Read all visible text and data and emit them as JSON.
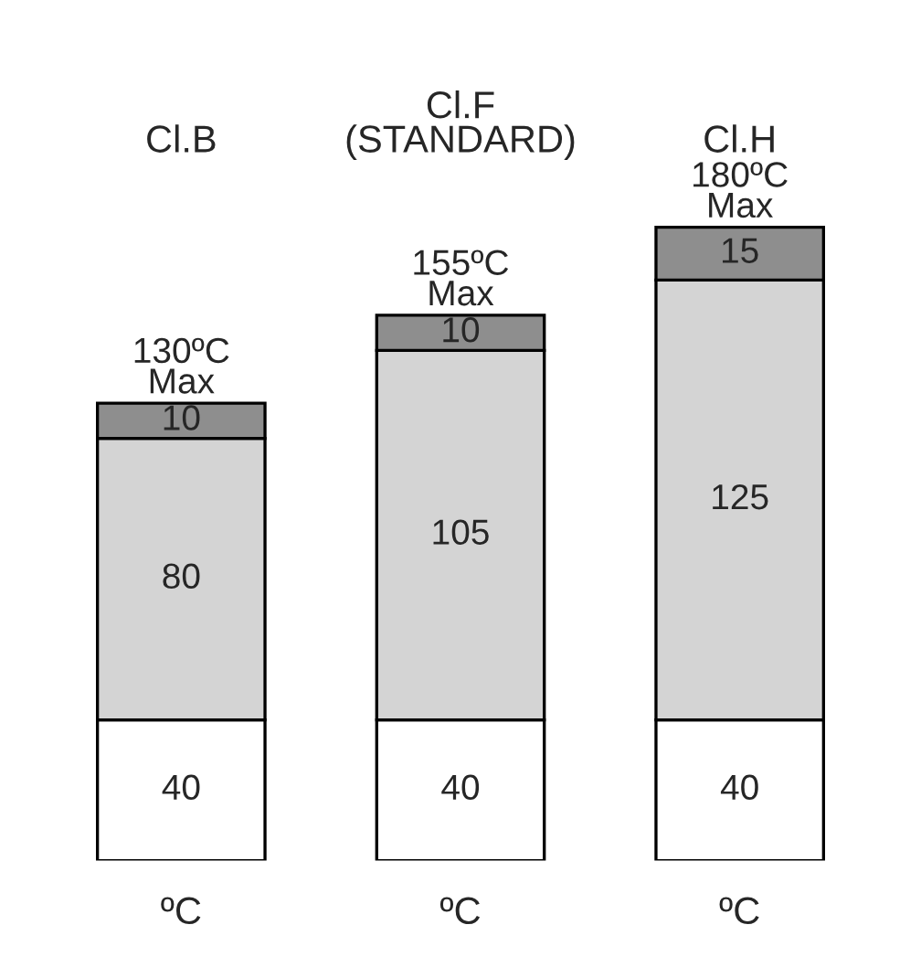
{
  "chart_data": {
    "type": "bar",
    "stacked": true,
    "categories": [
      "Cl.B",
      "Cl.F\n(STANDARD)",
      "Cl.H"
    ],
    "series": [
      {
        "color": "#ffffff",
        "values": [
          40,
          40,
          40
        ]
      },
      {
        "color": "#d4d4d4",
        "values": [
          80,
          105,
          125
        ]
      },
      {
        "color": "#8e8e8e",
        "values": [
          10,
          10,
          15
        ]
      }
    ],
    "data_labels": true,
    "totals": [
      "130ºC\nMax",
      "155ºC\nMax",
      "180ºC\nMax"
    ],
    "annotations": [
      "ºC",
      "ºC",
      "ºC"
    ]
  }
}
